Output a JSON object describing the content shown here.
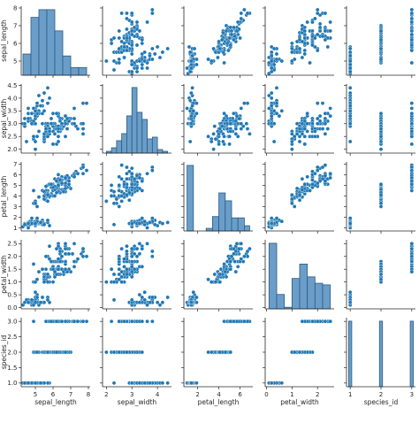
{
  "chart_data": {
    "type": "pairplot",
    "title": "",
    "variables": [
      "sepal_length",
      "sepal_width",
      "petal_length",
      "petal_width",
      "species_id"
    ],
    "colors": {
      "marker": "#1f77b4",
      "edge": "#ffffff",
      "hist_fill": "#6a9ec9",
      "hist_edge": "#2b5a80",
      "axis": "#262626"
    },
    "grid": false,
    "axes": {
      "sepal_length": {
        "range": [
          4.2,
          8.1
        ],
        "ticks": [
          5,
          6,
          7,
          8
        ],
        "tick_labels": [
          "5",
          "6",
          "7",
          "8"
        ]
      },
      "sepal_width": {
        "range": [
          1.85,
          4.55
        ],
        "ticks": [
          2,
          3,
          4
        ],
        "tick_labels": [
          "2",
          "3",
          "4"
        ]
      },
      "petal_length": {
        "range": [
          0.7,
          7.2
        ],
        "ticks": [
          2,
          4,
          6
        ],
        "tick_labels": [
          "2",
          "4",
          "6"
        ]
      },
      "petal_width": {
        "range": [
          -0.05,
          2.65
        ],
        "ticks": [
          0,
          1,
          2
        ],
        "tick_labels": [
          "0",
          "1",
          "2"
        ]
      },
      "species_id": {
        "range": [
          0.88,
          3.12
        ],
        "ticks": [
          1,
          2,
          3
        ],
        "tick_labels": [
          "1",
          "2",
          "3"
        ]
      }
    },
    "y_axes": {
      "sepal_length": {
        "ticks": [
          5,
          6,
          7,
          8
        ],
        "tick_labels": [
          "5",
          "6",
          "7",
          "8"
        ]
      },
      "sepal_width": {
        "ticks": [
          2.0,
          2.5,
          3.0,
          3.5,
          4.0,
          4.5
        ],
        "tick_labels": [
          "2.0",
          "2.5",
          "3.0",
          "3.5",
          "4.0",
          "4.5"
        ]
      },
      "petal_length": {
        "ticks": [
          1,
          2,
          3,
          4,
          5,
          6,
          7
        ],
        "tick_labels": [
          "1",
          "2",
          "3",
          "4",
          "5",
          "6",
          "7"
        ]
      },
      "petal_width": {
        "ticks": [
          0.0,
          0.5,
          1.0,
          1.5,
          2.0,
          2.5
        ],
        "tick_labels": [
          "0.0",
          "0.5",
          "1.0",
          "1.5",
          "2.0",
          "2.5"
        ]
      },
      "species_id": {
        "ticks": [
          1.0,
          1.5,
          2.0,
          2.5,
          3.0
        ],
        "tick_labels": [
          "1.0",
          "1.5",
          "2.0",
          "2.5",
          "3.0"
        ]
      }
    },
    "histograms": {
      "sepal_length": {
        "edges": [
          4.3,
          4.75,
          5.2,
          5.65,
          6.1,
          6.55,
          7.0,
          7.45,
          7.9
        ],
        "counts": [
          11,
          30,
          34,
          34,
          23,
          10,
          4,
          4
        ]
      },
      "sepal_width": {
        "edges": [
          2.0,
          2.2,
          2.4,
          2.6,
          2.8,
          3.0,
          3.2,
          3.4,
          3.6,
          3.8,
          4.0,
          4.2,
          4.4
        ],
        "counts": [
          1,
          3,
          7,
          11,
          21,
          37,
          23,
          19,
          8,
          9,
          2,
          1
        ]
      },
      "petal_length": {
        "edges": [
          1.0,
          1.6,
          2.2,
          2.8,
          3.4,
          4.0,
          4.6,
          5.2,
          5.8,
          6.4,
          6.9
        ],
        "counts": [
          50,
          0,
          0,
          2,
          11,
          29,
          23,
          10,
          10,
          4
        ]
      },
      "petal_width": {
        "edges": [
          0.1,
          0.4,
          0.7,
          1.0,
          1.3,
          1.6,
          1.9,
          2.2,
          2.5
        ],
        "counts": [
          41,
          9,
          1,
          19,
          28,
          20,
          16,
          15
        ]
      },
      "species_id": {
        "edges": [
          0.95,
          1.05,
          1.95,
          2.05,
          2.95,
          3.05
        ],
        "counts": [
          50,
          0,
          50,
          0,
          50
        ]
      }
    },
    "points": [
      [
        5.1,
        3.5,
        1.4,
        0.2,
        1
      ],
      [
        4.9,
        3.0,
        1.4,
        0.2,
        1
      ],
      [
        4.7,
        3.2,
        1.3,
        0.2,
        1
      ],
      [
        4.6,
        3.1,
        1.5,
        0.2,
        1
      ],
      [
        5.0,
        3.6,
        1.4,
        0.2,
        1
      ],
      [
        5.4,
        3.9,
        1.7,
        0.4,
        1
      ],
      [
        4.6,
        3.4,
        1.4,
        0.3,
        1
      ],
      [
        5.0,
        3.4,
        1.5,
        0.2,
        1
      ],
      [
        4.4,
        2.9,
        1.4,
        0.2,
        1
      ],
      [
        4.9,
        3.1,
        1.5,
        0.1,
        1
      ],
      [
        5.4,
        3.7,
        1.5,
        0.2,
        1
      ],
      [
        4.8,
        3.4,
        1.6,
        0.2,
        1
      ],
      [
        4.8,
        3.0,
        1.4,
        0.1,
        1
      ],
      [
        4.3,
        3.0,
        1.1,
        0.1,
        1
      ],
      [
        5.8,
        4.0,
        1.2,
        0.2,
        1
      ],
      [
        5.7,
        4.4,
        1.5,
        0.4,
        1
      ],
      [
        5.4,
        3.9,
        1.3,
        0.4,
        1
      ],
      [
        5.1,
        3.5,
        1.4,
        0.3,
        1
      ],
      [
        5.7,
        3.8,
        1.7,
        0.3,
        1
      ],
      [
        5.1,
        3.8,
        1.5,
        0.3,
        1
      ],
      [
        5.4,
        3.4,
        1.7,
        0.2,
        1
      ],
      [
        5.1,
        3.7,
        1.5,
        0.4,
        1
      ],
      [
        4.6,
        3.6,
        1.0,
        0.2,
        1
      ],
      [
        5.1,
        3.3,
        1.7,
        0.5,
        1
      ],
      [
        4.8,
        3.4,
        1.9,
        0.2,
        1
      ],
      [
        5.0,
        3.0,
        1.6,
        0.2,
        1
      ],
      [
        5.0,
        3.4,
        1.6,
        0.4,
        1
      ],
      [
        5.2,
        3.5,
        1.5,
        0.2,
        1
      ],
      [
        5.2,
        3.4,
        1.4,
        0.2,
        1
      ],
      [
        4.7,
        3.2,
        1.6,
        0.2,
        1
      ],
      [
        4.8,
        3.1,
        1.6,
        0.2,
        1
      ],
      [
        5.4,
        3.4,
        1.5,
        0.4,
        1
      ],
      [
        5.2,
        4.1,
        1.5,
        0.1,
        1
      ],
      [
        5.5,
        4.2,
        1.4,
        0.2,
        1
      ],
      [
        4.9,
        3.1,
        1.5,
        0.2,
        1
      ],
      [
        5.0,
        3.2,
        1.2,
        0.2,
        1
      ],
      [
        5.5,
        3.5,
        1.3,
        0.2,
        1
      ],
      [
        4.9,
        3.6,
        1.4,
        0.1,
        1
      ],
      [
        4.4,
        3.0,
        1.3,
        0.2,
        1
      ],
      [
        5.1,
        3.4,
        1.5,
        0.2,
        1
      ],
      [
        5.0,
        3.5,
        1.3,
        0.3,
        1
      ],
      [
        4.5,
        2.3,
        1.3,
        0.3,
        1
      ],
      [
        4.4,
        3.2,
        1.3,
        0.2,
        1
      ],
      [
        5.0,
        3.5,
        1.6,
        0.6,
        1
      ],
      [
        5.1,
        3.8,
        1.9,
        0.4,
        1
      ],
      [
        4.8,
        3.0,
        1.4,
        0.3,
        1
      ],
      [
        5.1,
        3.8,
        1.6,
        0.2,
        1
      ],
      [
        4.6,
        3.2,
        1.4,
        0.2,
        1
      ],
      [
        5.3,
        3.7,
        1.5,
        0.2,
        1
      ],
      [
        5.0,
        3.3,
        1.4,
        0.2,
        1
      ],
      [
        7.0,
        3.2,
        4.7,
        1.4,
        2
      ],
      [
        6.4,
        3.2,
        4.5,
        1.5,
        2
      ],
      [
        6.9,
        3.1,
        4.9,
        1.5,
        2
      ],
      [
        5.5,
        2.3,
        4.0,
        1.3,
        2
      ],
      [
        6.5,
        2.8,
        4.6,
        1.5,
        2
      ],
      [
        5.7,
        2.8,
        4.5,
        1.3,
        2
      ],
      [
        6.3,
        3.3,
        4.7,
        1.6,
        2
      ],
      [
        4.9,
        2.4,
        3.3,
        1.0,
        2
      ],
      [
        6.6,
        2.9,
        4.6,
        1.3,
        2
      ],
      [
        5.2,
        2.7,
        3.9,
        1.4,
        2
      ],
      [
        5.0,
        2.0,
        3.5,
        1.0,
        2
      ],
      [
        5.9,
        3.0,
        4.2,
        1.5,
        2
      ],
      [
        6.0,
        2.2,
        4.0,
        1.0,
        2
      ],
      [
        6.1,
        2.9,
        4.7,
        1.4,
        2
      ],
      [
        5.6,
        2.9,
        3.6,
        1.3,
        2
      ],
      [
        6.7,
        3.1,
        4.4,
        1.4,
        2
      ],
      [
        5.6,
        3.0,
        4.5,
        1.5,
        2
      ],
      [
        5.8,
        2.7,
        4.1,
        1.0,
        2
      ],
      [
        6.2,
        2.2,
        4.5,
        1.5,
        2
      ],
      [
        5.6,
        2.5,
        3.9,
        1.1,
        2
      ],
      [
        5.9,
        3.2,
        4.8,
        1.8,
        2
      ],
      [
        6.1,
        2.8,
        4.0,
        1.3,
        2
      ],
      [
        6.3,
        2.5,
        4.9,
        1.5,
        2
      ],
      [
        6.1,
        2.8,
        4.7,
        1.2,
        2
      ],
      [
        6.4,
        2.9,
        4.3,
        1.3,
        2
      ],
      [
        6.6,
        3.0,
        4.4,
        1.4,
        2
      ],
      [
        6.8,
        2.8,
        4.8,
        1.4,
        2
      ],
      [
        6.7,
        3.0,
        5.0,
        1.7,
        2
      ],
      [
        6.0,
        2.9,
        4.5,
        1.5,
        2
      ],
      [
        5.7,
        2.6,
        3.5,
        1.0,
        2
      ],
      [
        5.5,
        2.4,
        3.8,
        1.1,
        2
      ],
      [
        5.5,
        2.4,
        3.7,
        1.0,
        2
      ],
      [
        5.8,
        2.7,
        3.9,
        1.2,
        2
      ],
      [
        6.0,
        2.7,
        5.1,
        1.6,
        2
      ],
      [
        5.4,
        3.0,
        4.5,
        1.5,
        2
      ],
      [
        6.0,
        3.4,
        4.5,
        1.6,
        2
      ],
      [
        6.7,
        3.1,
        4.7,
        1.5,
        2
      ],
      [
        6.3,
        2.3,
        4.4,
        1.3,
        2
      ],
      [
        5.6,
        3.0,
        4.1,
        1.3,
        2
      ],
      [
        5.5,
        2.5,
        4.0,
        1.3,
        2
      ],
      [
        5.5,
        2.6,
        4.4,
        1.2,
        2
      ],
      [
        6.1,
        3.0,
        4.6,
        1.4,
        2
      ],
      [
        5.8,
        2.6,
        4.0,
        1.2,
        2
      ],
      [
        5.0,
        2.3,
        3.3,
        1.0,
        2
      ],
      [
        5.6,
        2.7,
        4.2,
        1.3,
        2
      ],
      [
        5.7,
        3.0,
        4.2,
        1.2,
        2
      ],
      [
        5.7,
        2.9,
        4.2,
        1.3,
        2
      ],
      [
        6.2,
        2.9,
        4.3,
        1.3,
        2
      ],
      [
        5.1,
        2.5,
        3.0,
        1.1,
        2
      ],
      [
        5.7,
        2.8,
        4.1,
        1.3,
        2
      ],
      [
        6.3,
        3.3,
        6.0,
        2.5,
        3
      ],
      [
        5.8,
        2.7,
        5.1,
        1.9,
        3
      ],
      [
        7.1,
        3.0,
        5.9,
        2.1,
        3
      ],
      [
        6.3,
        2.9,
        5.6,
        1.8,
        3
      ],
      [
        6.5,
        3.0,
        5.8,
        2.2,
        3
      ],
      [
        7.6,
        3.0,
        6.6,
        2.1,
        3
      ],
      [
        4.9,
        2.5,
        4.5,
        1.7,
        3
      ],
      [
        7.3,
        2.9,
        6.3,
        1.8,
        3
      ],
      [
        6.7,
        2.5,
        5.8,
        1.8,
        3
      ],
      [
        7.2,
        3.6,
        6.1,
        2.5,
        3
      ],
      [
        6.5,
        3.2,
        5.1,
        2.0,
        3
      ],
      [
        6.4,
        2.7,
        5.3,
        1.9,
        3
      ],
      [
        6.8,
        3.0,
        5.5,
        2.1,
        3
      ],
      [
        5.7,
        2.5,
        5.0,
        2.0,
        3
      ],
      [
        5.8,
        2.8,
        5.1,
        2.4,
        3
      ],
      [
        6.4,
        3.2,
        5.3,
        2.3,
        3
      ],
      [
        6.5,
        3.0,
        5.5,
        1.8,
        3
      ],
      [
        7.7,
        3.8,
        6.7,
        2.2,
        3
      ],
      [
        7.7,
        2.6,
        6.9,
        2.3,
        3
      ],
      [
        6.0,
        2.2,
        5.0,
        1.5,
        3
      ],
      [
        6.9,
        3.2,
        5.7,
        2.3,
        3
      ],
      [
        5.6,
        2.8,
        4.9,
        2.0,
        3
      ],
      [
        7.7,
        2.8,
        6.7,
        2.0,
        3
      ],
      [
        6.3,
        2.7,
        4.9,
        1.8,
        3
      ],
      [
        6.7,
        3.3,
        5.7,
        2.1,
        3
      ],
      [
        7.2,
        3.2,
        6.0,
        1.8,
        3
      ],
      [
        6.2,
        2.8,
        4.8,
        1.8,
        3
      ],
      [
        6.1,
        3.0,
        4.9,
        1.8,
        3
      ],
      [
        6.4,
        2.8,
        5.6,
        2.1,
        3
      ],
      [
        7.2,
        3.0,
        5.8,
        1.6,
        3
      ],
      [
        7.4,
        2.8,
        6.1,
        1.9,
        3
      ],
      [
        7.9,
        3.8,
        6.4,
        2.0,
        3
      ],
      [
        6.4,
        2.8,
        5.6,
        2.2,
        3
      ],
      [
        6.3,
        2.8,
        5.1,
        1.5,
        3
      ],
      [
        6.1,
        2.6,
        5.6,
        1.4,
        3
      ],
      [
        7.7,
        3.0,
        6.1,
        2.3,
        3
      ],
      [
        6.3,
        3.4,
        5.6,
        2.4,
        3
      ],
      [
        6.4,
        3.1,
        5.5,
        1.8,
        3
      ],
      [
        6.0,
        3.0,
        4.8,
        1.8,
        3
      ],
      [
        6.9,
        3.1,
        5.4,
        2.1,
        3
      ],
      [
        6.7,
        3.1,
        5.6,
        2.4,
        3
      ],
      [
        6.9,
        3.1,
        5.1,
        2.3,
        3
      ],
      [
        5.8,
        2.7,
        5.1,
        1.9,
        3
      ],
      [
        6.8,
        3.2,
        5.9,
        2.3,
        3
      ],
      [
        6.7,
        3.3,
        5.7,
        2.5,
        3
      ],
      [
        6.7,
        3.0,
        5.2,
        2.3,
        3
      ],
      [
        6.3,
        2.5,
        5.0,
        1.9,
        3
      ],
      [
        6.5,
        3.0,
        5.2,
        2.0,
        3
      ],
      [
        6.2,
        3.4,
        5.4,
        2.3,
        3
      ],
      [
        5.9,
        3.0,
        5.1,
        1.8,
        3
      ]
    ]
  }
}
